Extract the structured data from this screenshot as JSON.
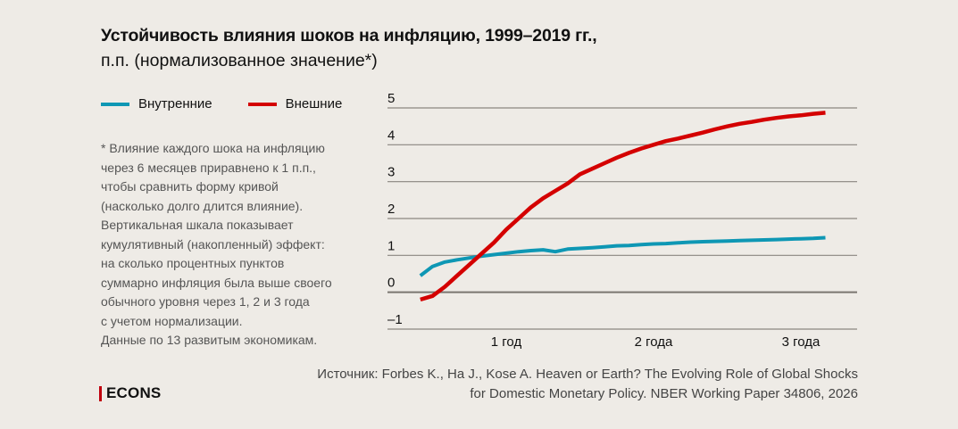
{
  "header": {
    "title": "Устойчивость влияния шоков на инфляцию, 1999–2019 гг.,",
    "subtitle": "п.п. (нормализованное значение*)"
  },
  "legend": [
    {
      "label": "Внутренние",
      "color": "#0e97b4"
    },
    {
      "label": "Внешние",
      "color": "#d40000"
    }
  ],
  "note_lines": [
    "* Влияние каждого шока на инфляцию",
    "через 6 месяцев приравнено к 1 п.п.,",
    "чтобы сравнить форму кривой",
    "(насколько долго длится влияние).",
    "Вертикальная шкала показывает",
    "кумулятивный (накопленный) эффект:",
    "на сколько процентных пунктов",
    "суммарно инфляция была выше своего",
    "обычного уровня через 1, 2 и 3 года",
    "с учетом нормализации.",
    "Данные по 13 развитым экономикам."
  ],
  "source": {
    "line1": "Источник: Forbes K., Ha J., Kose A. Heaven or Earth? The Evolving Role of Global Shocks",
    "line2": "for Domestic Monetary Policy. NBER Working Paper 34806, 2026"
  },
  "logo": "ECONS",
  "chart_data": {
    "type": "line",
    "title": "Устойчивость влияния шоков на инфляцию, 1999–2019 гг., п.п. (нормализованное значение*)",
    "xlabel": "",
    "ylabel": "",
    "x_unit": "months after shock",
    "x": [
      5,
      6,
      7,
      8,
      9,
      10,
      11,
      12,
      13,
      14,
      15,
      16,
      17,
      18,
      19,
      20,
      21,
      22,
      23,
      24,
      25,
      26,
      27,
      28,
      29,
      30,
      31,
      32,
      33,
      34,
      35,
      36,
      37,
      38
    ],
    "xlim": [
      0,
      40
    ],
    "x_ticks": [
      {
        "value": 12,
        "label": "1 год"
      },
      {
        "value": 24,
        "label": "2 года"
      },
      {
        "value": 36,
        "label": "3 года"
      }
    ],
    "ylim": [
      -1,
      5
    ],
    "y_ticks": [
      {
        "value": 5,
        "label": "5"
      },
      {
        "value": 4,
        "label": "4"
      },
      {
        "value": 3,
        "label": "3"
      },
      {
        "value": 2,
        "label": "2"
      },
      {
        "value": 1,
        "label": "1"
      },
      {
        "value": 0,
        "label": "0"
      },
      {
        "value": -1,
        "label": "–1"
      }
    ],
    "grid": true,
    "legend_position": "top-left",
    "series": [
      {
        "name": "Внутренние",
        "color": "#0e97b4",
        "values": [
          0.45,
          0.7,
          0.82,
          0.88,
          0.93,
          0.98,
          1.02,
          1.06,
          1.1,
          1.13,
          1.15,
          1.1,
          1.17,
          1.19,
          1.21,
          1.23,
          1.26,
          1.27,
          1.29,
          1.31,
          1.32,
          1.34,
          1.36,
          1.37,
          1.38,
          1.39,
          1.4,
          1.41,
          1.42,
          1.43,
          1.44,
          1.45,
          1.46,
          1.48
        ]
      },
      {
        "name": "Внешние",
        "color": "#d40000",
        "values": [
          -0.2,
          -0.1,
          0.15,
          0.45,
          0.75,
          1.05,
          1.35,
          1.7,
          2.0,
          2.3,
          2.55,
          2.75,
          2.95,
          3.2,
          3.35,
          3.5,
          3.65,
          3.78,
          3.9,
          4.0,
          4.1,
          4.17,
          4.25,
          4.33,
          4.42,
          4.5,
          4.57,
          4.62,
          4.68,
          4.73,
          4.77,
          4.8,
          4.84,
          4.87
        ]
      }
    ]
  }
}
